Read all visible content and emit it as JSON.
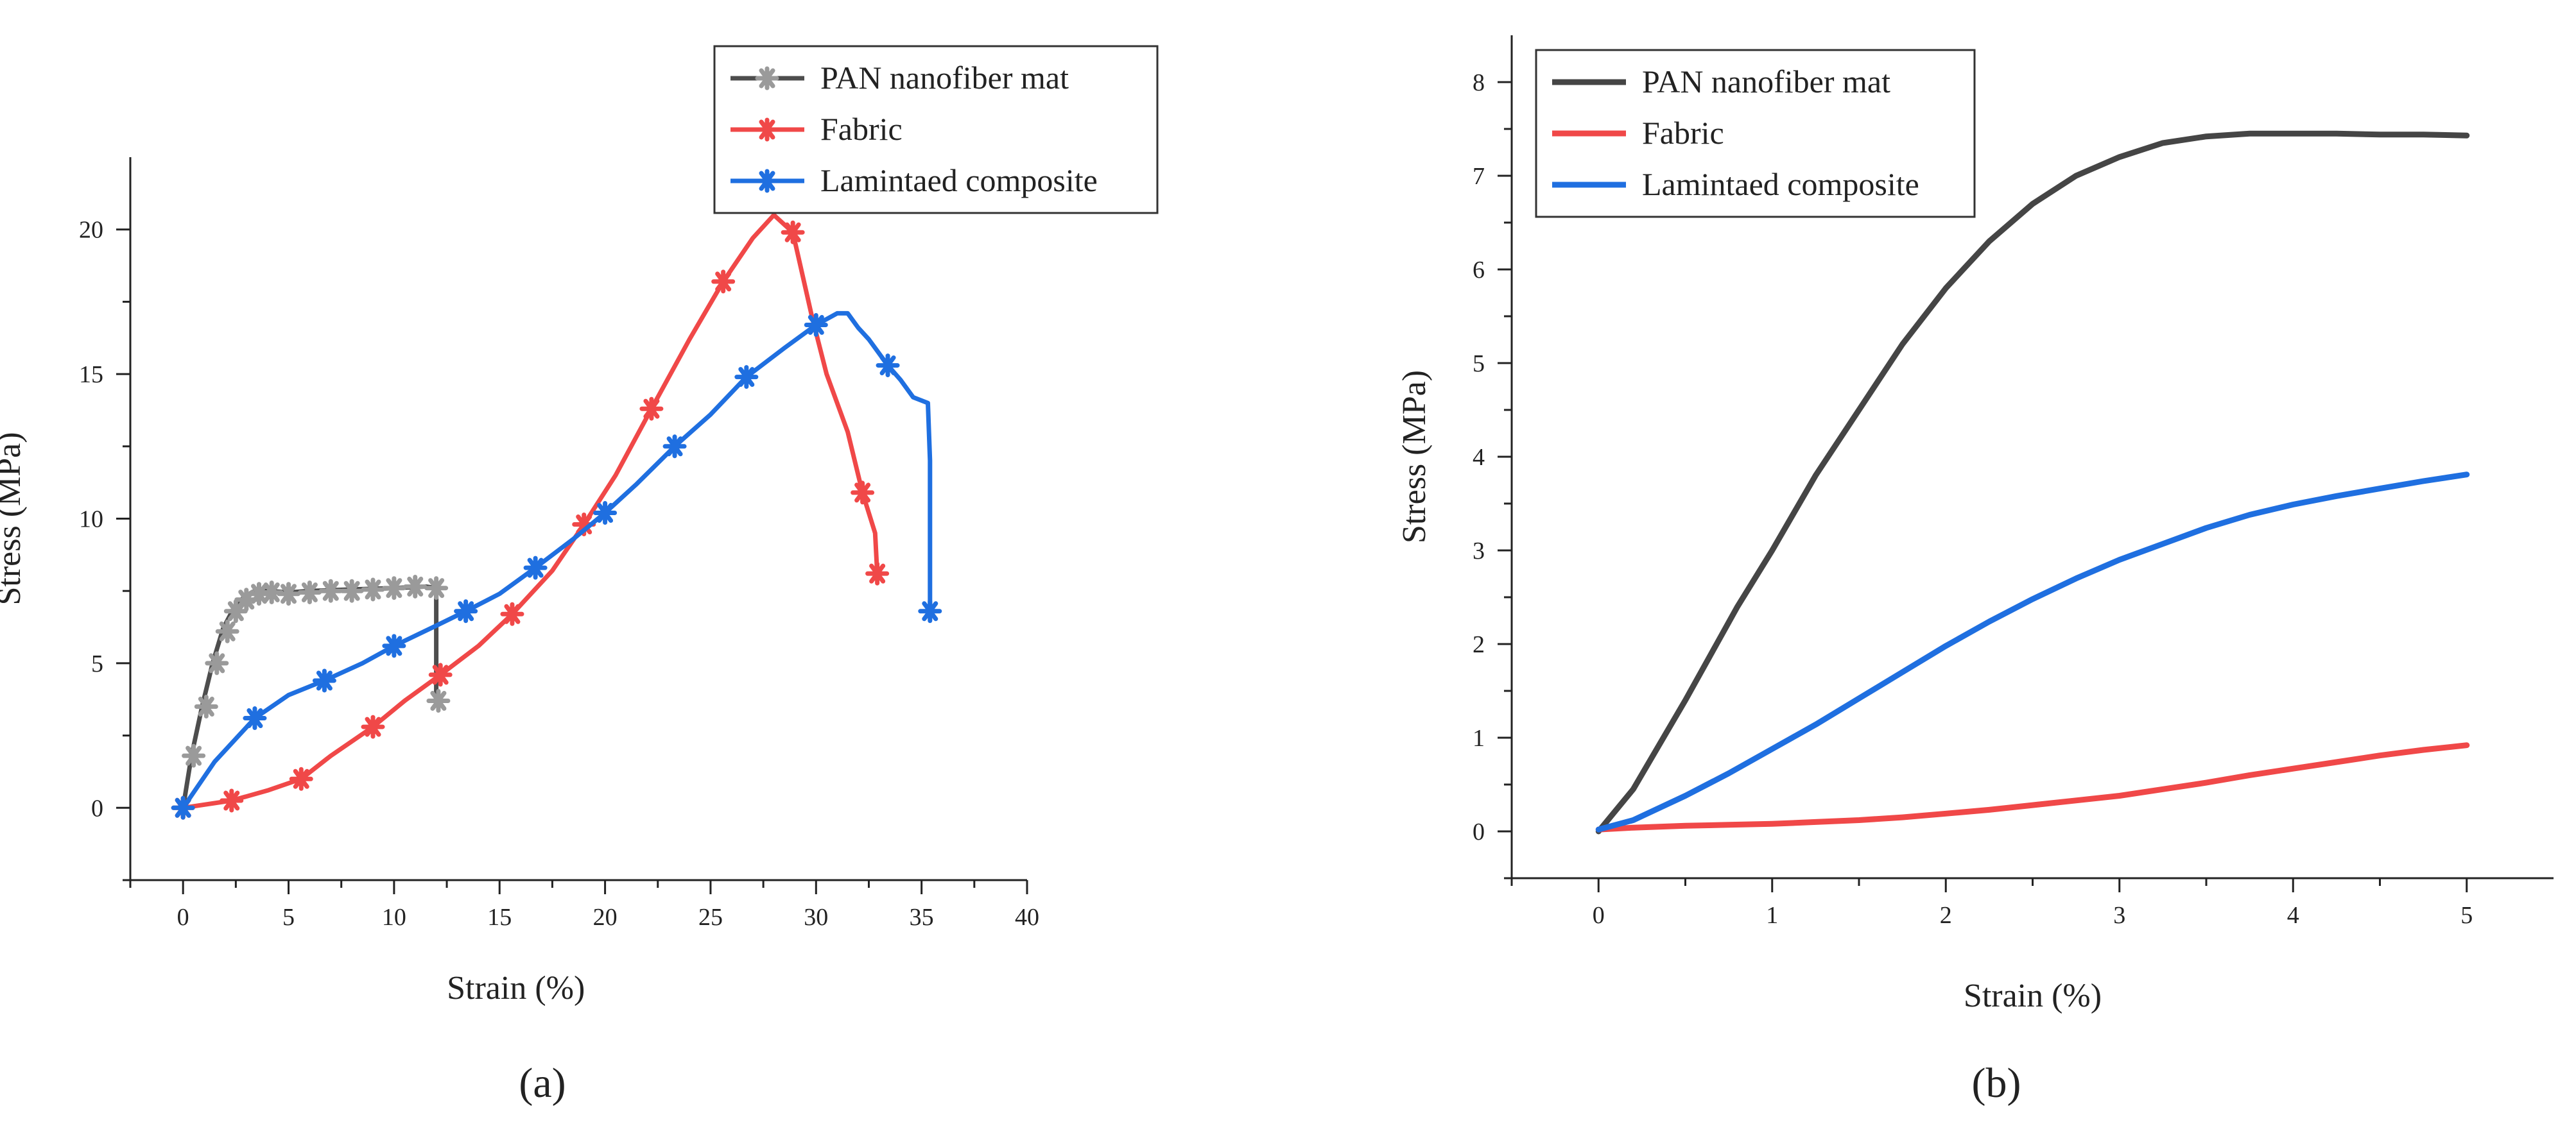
{
  "chart_data": [
    {
      "type": "line",
      "panel": "a",
      "panel_caption": "(a)",
      "xlabel": "Strain (%)",
      "ylabel": "Stress (MPa)",
      "xlim": [
        -2.5,
        40
      ],
      "ylim": [
        -2.5,
        22.5
      ],
      "xticks": [
        0,
        5,
        10,
        15,
        20,
        25,
        30,
        35,
        40
      ],
      "yticks": [
        0,
        5,
        10,
        15,
        20
      ],
      "legend_position": "top-right",
      "markers": "asterisk",
      "series": [
        {
          "name": "PAN nanofiber mat",
          "color": "#4d4d4d",
          "marker_color": "#9a9a9a",
          "x": [
            0,
            0.4,
            0.9,
            1.4,
            1.9,
            2.4,
            2.9,
            3.4,
            4,
            5,
            6,
            8,
            10,
            11.5,
            12,
            12,
            12
          ],
          "y": [
            0,
            1.8,
            3.5,
            5.0,
            6.2,
            6.9,
            7.3,
            7.5,
            7.5,
            7.45,
            7.5,
            7.55,
            7.6,
            7.65,
            7.6,
            5.5,
            3.7
          ],
          "marker_x": [
            0,
            0.5,
            1.1,
            1.6,
            2.1,
            2.5,
            3.0,
            3.6,
            4.2,
            5,
            6,
            7,
            8,
            9,
            10,
            11,
            12,
            12.1
          ],
          "marker_y": [
            0,
            1.8,
            3.5,
            5.0,
            6.1,
            6.8,
            7.2,
            7.4,
            7.45,
            7.4,
            7.45,
            7.5,
            7.5,
            7.55,
            7.6,
            7.65,
            7.6,
            3.7
          ]
        },
        {
          "name": "Fabric",
          "color": "#f04848",
          "marker_color": "#f04848",
          "x": [
            0,
            2.3,
            4,
            5.6,
            7,
            9,
            10.5,
            12.2,
            14,
            15.6,
            17.5,
            19,
            20.5,
            22.2,
            24,
            25.6,
            27,
            28,
            28.9,
            29.8,
            30.5,
            31.5,
            32.2,
            32.8,
            32.9
          ],
          "y": [
            0,
            0.25,
            0.6,
            1.0,
            1.8,
            2.8,
            3.7,
            4.6,
            5.6,
            6.7,
            8.2,
            9.8,
            11.5,
            13.8,
            16.2,
            18.2,
            19.7,
            20.5,
            19.9,
            17.0,
            15.0,
            13.0,
            10.9,
            9.5,
            8.1
          ],
          "marker_x": [
            0,
            2.3,
            5.6,
            9,
            12.2,
            15.6,
            19,
            22.2,
            25.6,
            28.9,
            32.2,
            32.9
          ],
          "marker_y": [
            0,
            0.25,
            1.0,
            2.8,
            4.6,
            6.7,
            9.8,
            13.8,
            18.2,
            19.9,
            10.9,
            8.1
          ]
        },
        {
          "name": "Lamintaed composite",
          "color": "#1f6fe0",
          "marker_color": "#1f6fe0",
          "x": [
            0,
            1.5,
            3.4,
            5,
            6.7,
            8.5,
            10,
            12,
            13.4,
            15,
            16.7,
            18.5,
            20,
            21.5,
            23.3,
            25,
            26.7,
            28.5,
            30,
            31,
            31.5,
            32,
            32.5,
            33.4,
            34,
            34.6,
            35.3,
            35.4,
            35.4,
            35.4
          ],
          "y": [
            0,
            1.6,
            3.1,
            3.9,
            4.4,
            5.0,
            5.6,
            6.3,
            6.8,
            7.4,
            8.3,
            9.3,
            10.2,
            11.2,
            12.5,
            13.6,
            14.9,
            15.9,
            16.7,
            17.1,
            17.1,
            16.6,
            16.2,
            15.3,
            14.8,
            14.2,
            14.0,
            12.0,
            9.0,
            6.8
          ],
          "marker_x": [
            0,
            3.4,
            6.7,
            10,
            13.4,
            16.7,
            20,
            23.3,
            26.7,
            30,
            33.4,
            35.4
          ],
          "marker_y": [
            0,
            3.1,
            4.4,
            5.6,
            6.8,
            8.3,
            10.2,
            12.5,
            14.9,
            16.7,
            15.3,
            6.8
          ]
        }
      ]
    },
    {
      "type": "line",
      "panel": "b",
      "panel_caption": "(b)",
      "xlabel": "Strain (%)",
      "ylabel": "Stress (MPa)",
      "xlim": [
        -0.5,
        5.5
      ],
      "ylim": [
        -0.5,
        8.5
      ],
      "xticks": [
        0,
        1,
        2,
        3,
        4,
        5
      ],
      "yticks": [
        0,
        1,
        2,
        3,
        4,
        5,
        6,
        7,
        8
      ],
      "legend_position": "top-left",
      "markers": "none",
      "series": [
        {
          "name": "PAN nanofiber mat",
          "color": "#454545",
          "x": [
            0,
            0.2,
            0.5,
            0.8,
            1.0,
            1.25,
            1.5,
            1.75,
            2.0,
            2.25,
            2.5,
            2.75,
            3.0,
            3.25,
            3.5,
            3.75,
            4.0,
            4.25,
            4.5,
            4.75,
            5.0
          ],
          "y": [
            0,
            0.45,
            1.4,
            2.4,
            3.0,
            3.8,
            4.5,
            5.2,
            5.8,
            6.3,
            6.7,
            7.0,
            7.2,
            7.35,
            7.42,
            7.45,
            7.45,
            7.45,
            7.44,
            7.44,
            7.43
          ]
        },
        {
          "name": "Fabric",
          "color": "#f04848",
          "x": [
            0,
            0.2,
            0.5,
            0.75,
            1.0,
            1.25,
            1.5,
            1.75,
            2.0,
            2.25,
            2.5,
            2.75,
            3.0,
            3.25,
            3.5,
            3.75,
            4.0,
            4.25,
            4.5,
            4.75,
            5.0
          ],
          "y": [
            0.02,
            0.04,
            0.06,
            0.07,
            0.08,
            0.1,
            0.12,
            0.15,
            0.19,
            0.23,
            0.28,
            0.33,
            0.38,
            0.45,
            0.52,
            0.6,
            0.67,
            0.74,
            0.81,
            0.87,
            0.92
          ]
        },
        {
          "name": "Lamintaed composite",
          "color": "#1f6fe0",
          "x": [
            0,
            0.2,
            0.5,
            0.75,
            1.0,
            1.25,
            1.5,
            1.75,
            2.0,
            2.25,
            2.5,
            2.75,
            3.0,
            3.25,
            3.5,
            3.75,
            4.0,
            4.25,
            4.5,
            4.75,
            5.0
          ],
          "y": [
            0.02,
            0.12,
            0.38,
            0.62,
            0.88,
            1.14,
            1.42,
            1.7,
            1.98,
            2.24,
            2.48,
            2.7,
            2.9,
            3.07,
            3.24,
            3.38,
            3.49,
            3.58,
            3.66,
            3.74,
            3.81
          ]
        }
      ]
    }
  ]
}
